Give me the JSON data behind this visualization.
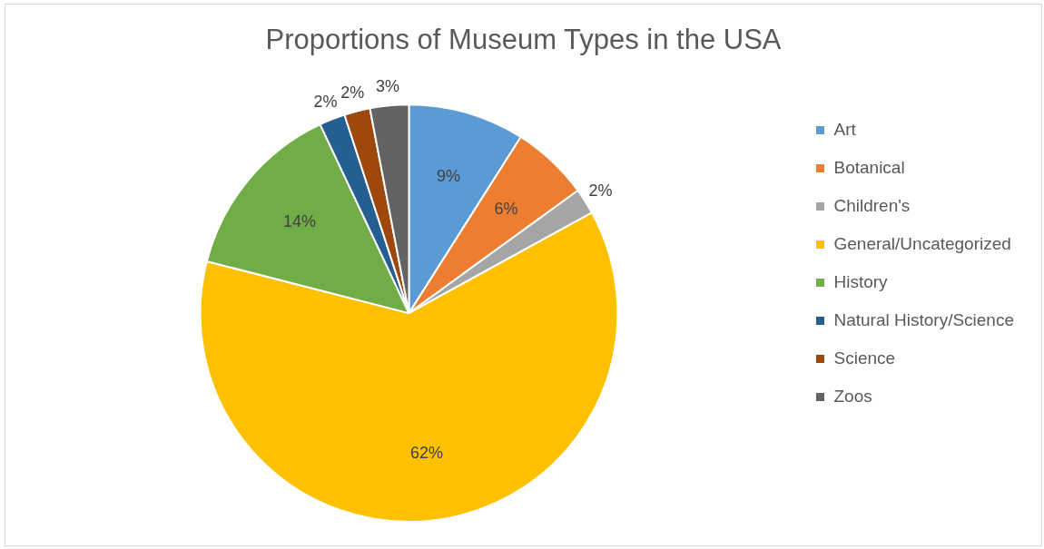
{
  "chart_data": {
    "type": "pie",
    "title": "Proportions of Museum Types in the USA",
    "categories": [
      "Art",
      "Botanical",
      "Children's",
      "General/Uncategorized",
      "History",
      "Natural History/Science",
      "Science",
      "Zoos"
    ],
    "values": [
      9,
      6,
      2,
      62,
      14,
      2,
      2,
      3
    ],
    "value_labels": [
      "9%",
      "6%",
      "2%",
      "62%",
      "14%",
      "2%",
      "2%",
      "3%"
    ],
    "colors": [
      "#5b9bd5",
      "#ed7d31",
      "#a5a5a5",
      "#ffc000",
      "#70ad47",
      "#255e91",
      "#9e480e",
      "#636363"
    ],
    "legend": "right"
  }
}
